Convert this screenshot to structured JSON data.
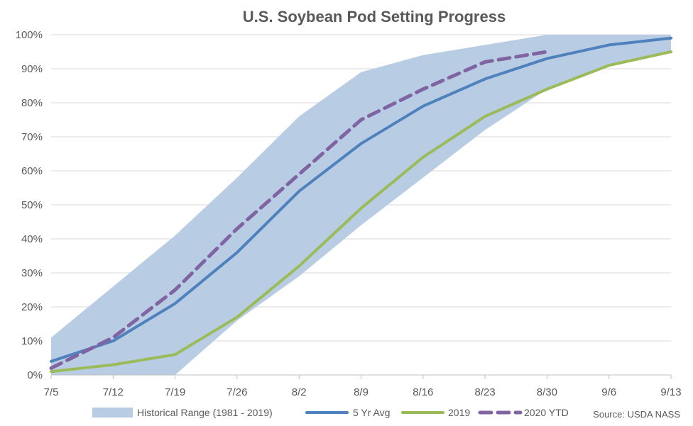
{
  "chart_data": {
    "type": "line",
    "title": "U.S. Soybean Pod Setting Progress",
    "xlabel": "",
    "ylabel": "",
    "ylim": [
      0,
      100
    ],
    "y_ticks": [
      "0%",
      "10%",
      "20%",
      "30%",
      "40%",
      "50%",
      "60%",
      "70%",
      "80%",
      "90%",
      "100%"
    ],
    "categories": [
      "7/5",
      "7/12",
      "7/19",
      "7/26",
      "8/2",
      "8/9",
      "8/16",
      "8/23",
      "8/30",
      "9/6",
      "9/13"
    ],
    "range": {
      "name": "Historical Range (1981 - 2019)",
      "color": "#b8cce4",
      "low": [
        0,
        0,
        0,
        16,
        29,
        44,
        58,
        72,
        84,
        91,
        95
      ],
      "high": [
        11,
        26,
        41,
        58,
        76,
        89,
        94,
        97,
        100,
        100,
        100
      ]
    },
    "series": [
      {
        "name": "5 Yr Avg",
        "color": "#4f81bd",
        "dash": false,
        "values": [
          4,
          10,
          21,
          36,
          54,
          68,
          79,
          87,
          93,
          97,
          99
        ]
      },
      {
        "name": "2019",
        "color": "#9bbb59",
        "dash": false,
        "values": [
          1,
          3,
          6,
          17,
          32,
          49,
          64,
          76,
          84,
          91,
          95
        ]
      },
      {
        "name": "2020 YTD",
        "color": "#8064a2",
        "dash": true,
        "values": [
          2,
          11,
          25,
          43,
          59,
          75,
          84,
          92,
          95,
          null,
          null
        ]
      }
    ],
    "grid": true,
    "legend_position": "bottom",
    "source": "Source: USDA NASS"
  }
}
